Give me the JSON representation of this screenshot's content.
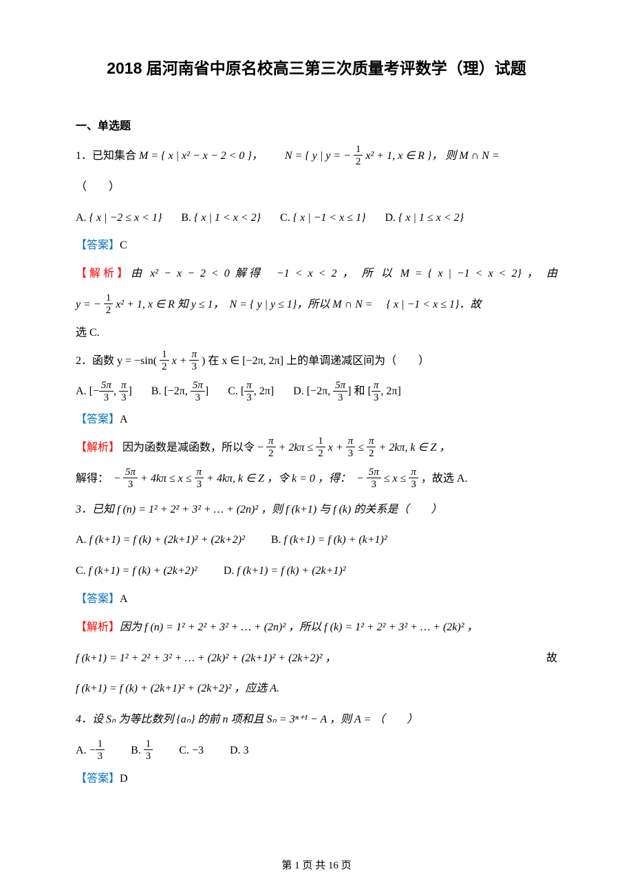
{
  "title": "2018 届河南省中原名校高三第三次质量考评数学（理）试题",
  "section_heading": "一、单选题",
  "q1": {
    "stem_prefix": "1．已知集合 ",
    "set_M": "M = { x | x² − x − 2 < 0 }，",
    "set_N_prefix": "N = { y | y = −",
    "set_N_suffix": " x² + 1, x ∈ R }，",
    "tail": " 则 M ∩ N =",
    "paren": "（　　）",
    "A_label": "A.",
    "A": "{ x | −2 ≤ x < 1}",
    "B_label": "B.",
    "B": "{ x | 1 < x < 2}",
    "C_label": "C.",
    "C": "{ x | −1 < x ≤ 1}",
    "D_label": "D.",
    "D": "{ x | 1 ≤ x < 2}",
    "answer_label": "【答案】",
    "answer": "C",
    "analysis_label": "【解析】",
    "ana1": "由 x² − x − 2 < 0 解得　−1 < x < 2 ， 所 以 M = { x | −1 < x < 2} ， 由",
    "ana2a": "y = −",
    "ana2b": " x² + 1, x ∈ R 知 y ≤ 1，　N = { y | y ≤ 1}，所以 M ∩ N = 　{ x | −1 < x ≤ 1}．故",
    "ana3": "选 C."
  },
  "q2": {
    "stem_a": "2．函数 y = −sin(",
    "stem_b": "x + ",
    "stem_c": ") 在 x ∈ [−2π, 2π] 上的单调递减区间为（　　）",
    "A_label": "A.",
    "A_open": "[−",
    "A_mid": ", ",
    "A_close": "]",
    "B_label": "B.",
    "B_open": "[−2π, ",
    "B_close": "]",
    "C_label": "C.",
    "C_open": "[",
    "C_mid": ", 2π]",
    "D_label": "D.",
    "D_open": "[−2π, ",
    "D_mid": "] 和 [",
    "D_close": ", 2π]",
    "answer_label": "【答案】",
    "answer": "A",
    "analysis_label": "【解析】",
    "ana1a": "因为函数是减函数，所以令 −",
    "ana1b": " + 2kπ ≤ ",
    "ana1c": "x + ",
    "ana1d": " ≤ ",
    "ana1e": " + 2kπ, k ∈ Z ，",
    "ana2a": "解得：　−",
    "ana2b": " + 4kπ ≤ x ≤ ",
    "ana2c": " + 4kπ, k ∈ Z ，令 k = 0 ，得：　−",
    "ana2d": " ≤ x ≤ ",
    "ana2e": " ，故选 A."
  },
  "q3": {
    "stem": "3．已知 f (n) = 1² + 2² + 3² + … + (2n)² ，则 f (k+1) 与 f (k) 的关系是（　　）",
    "A_label": "A.",
    "A": "f (k+1) = f (k) + (2k+1)² + (2k+2)²",
    "B_label": "B.",
    "B": "f (k+1) = f (k) + (k+1)²",
    "C_label": "C.",
    "C": "f (k+1) = f (k) + (2k+2)²",
    "D_label": "D.",
    "D": "f (k+1) = f (k) + (2k+1)²",
    "answer_label": "【答案】",
    "answer": "A",
    "analysis_label": "【解析】",
    "ana1": "因为 f (n) = 1² + 2² + 3² + … + (2n)² ，所以 f (k) = 1² + 2² + 3² + … + (2k)² ，",
    "ana2": "f (k+1) = 1² + 2² + 3² + … + (2k)² + (2k+1)² + (2k+2)² ，",
    "ana2_tail": "故",
    "ana3": "f (k+1) = f (k) + (2k+1)² + (2k+2)² ，应选 A."
  },
  "q4": {
    "stem": "4．设 Sₙ 为等比数列 {aₙ} 的前 n 项和且 Sₙ = 3ⁿ⁺¹ − A ，则 A = （　　）",
    "A_label": "A.",
    "A_txt": "−",
    "B_label": "B.",
    "C_label": "C.",
    "C": "−3",
    "D_label": "D.",
    "D": "3",
    "answer_label": "【答案】",
    "answer": "D"
  },
  "frac": {
    "half_num": "1",
    "half_den": "2",
    "pi3_num": "π",
    "pi3_den": "3",
    "fivepi3_num": "5π",
    "fivepi3_den": "3",
    "pi2_num": "π",
    "pi2_den": "2",
    "third_num": "1",
    "third_den": "3"
  },
  "footer": "第 1 页 共 16 页"
}
